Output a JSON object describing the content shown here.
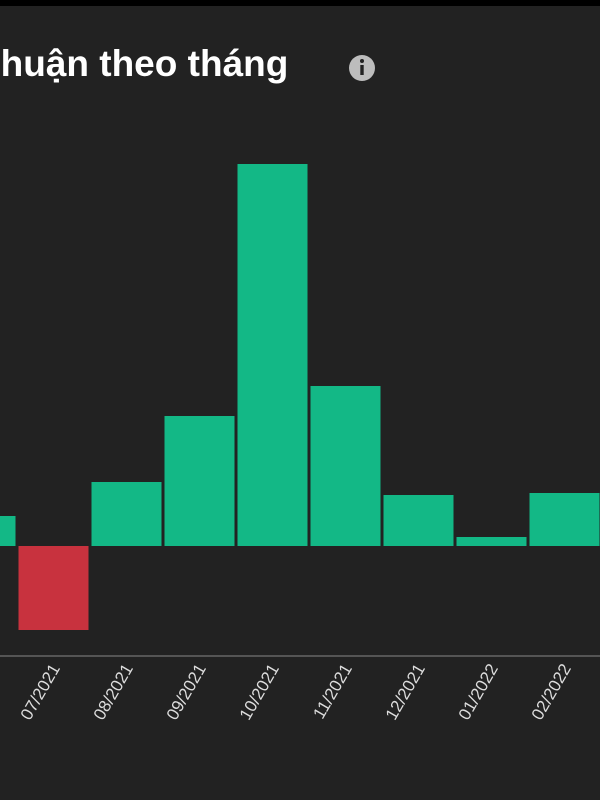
{
  "chart_data": {
    "type": "bar",
    "title": "nhuận theo tháng",
    "categories": [
      null,
      "07/2021",
      "08/2021",
      "09/2021",
      "10/2021",
      "11/2021",
      "12/2021",
      "01/2022",
      "02/2022"
    ],
    "values": [
      30,
      -84,
      64,
      130,
      382,
      160,
      51,
      9,
      53
    ],
    "positive_color": "#13b886",
    "negative_color": "#c8323e"
  }
}
